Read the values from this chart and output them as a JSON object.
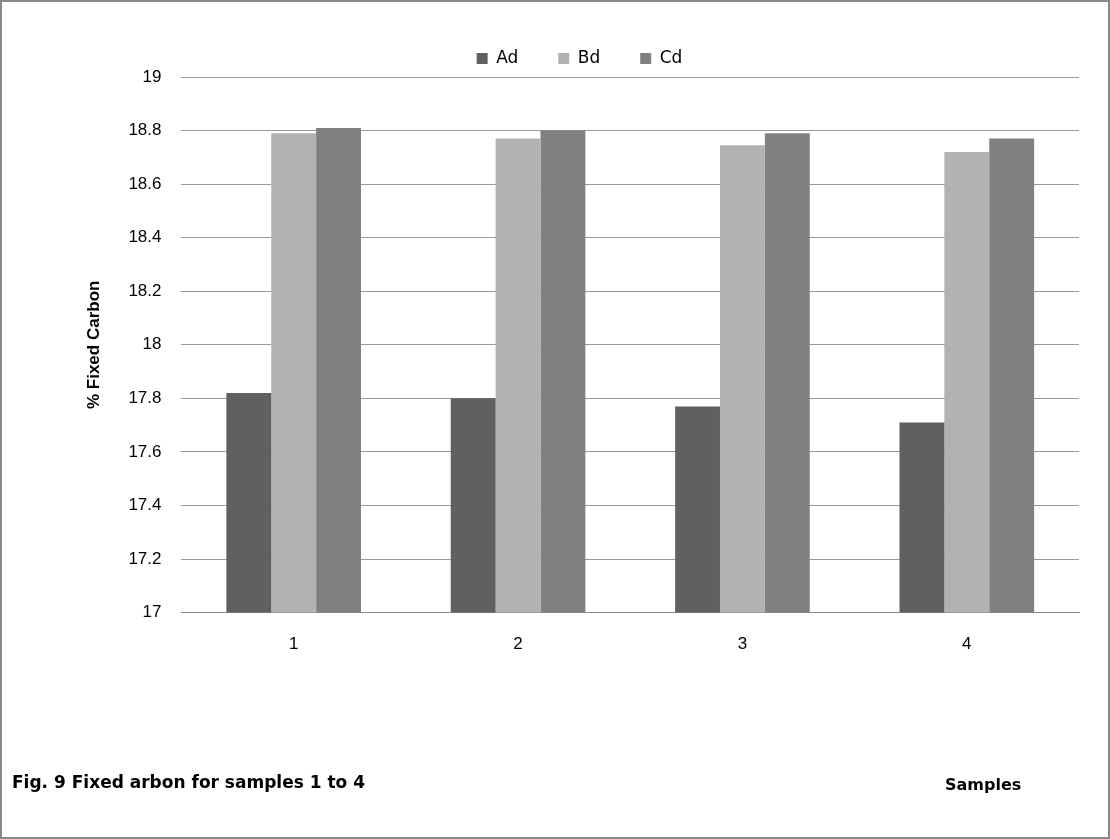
{
  "chart_data": {
    "type": "bar",
    "ylabel": "% Fixed Carbon",
    "categories": [
      "1",
      "2",
      "3",
      "4"
    ],
    "series": [
      {
        "name": "Ad",
        "color": "#606060",
        "values": [
          17.82,
          17.8,
          17.77,
          17.71
        ]
      },
      {
        "name": "Bd",
        "color": "#b2b2b2",
        "values": [
          18.79,
          18.77,
          18.745,
          18.72
        ]
      },
      {
        "name": "Cd",
        "color": "#808080",
        "values": [
          18.81,
          18.8,
          18.79,
          18.77
        ]
      }
    ],
    "ylim": [
      17,
      19
    ],
    "yticks": [
      17,
      17.2,
      17.4,
      17.6,
      17.8,
      18,
      18.2,
      18.4,
      18.6,
      18.8,
      19
    ],
    "grid": "y",
    "legend": "top",
    "annotations": [
      "Fig. 9 Fixed arbon for samples 1 to 4",
      "Samples"
    ]
  }
}
